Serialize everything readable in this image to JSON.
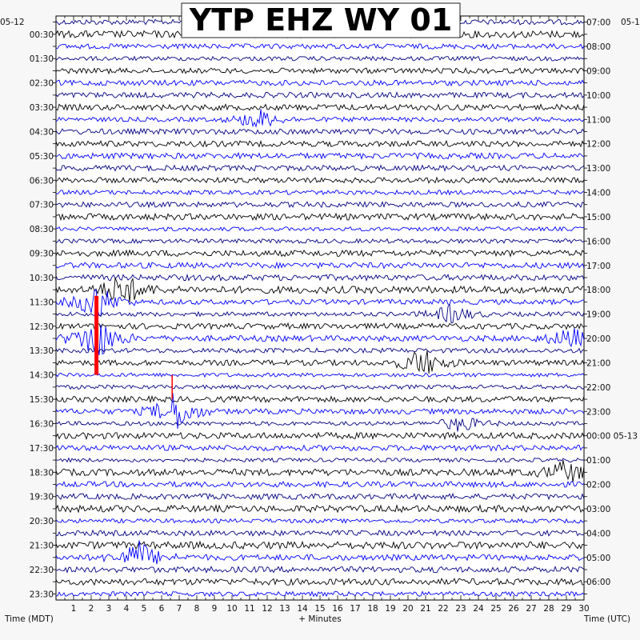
{
  "chart_data": {
    "type": "line",
    "title": "YTP EHZ WY 01",
    "date_left": "05-12",
    "date_right": "05-1",
    "xlabel": "+ Minutes",
    "left_axis_label": "Time (MDT)",
    "right_axis_label": "Time (UTC)",
    "xlim": [
      0,
      30
    ],
    "x_ticks": [
      "1",
      "2",
      "3",
      "4",
      "5",
      "6",
      "7",
      "8",
      "9",
      "10",
      "11",
      "12",
      "13",
      "14",
      "15",
      "16",
      "17",
      "18",
      "19",
      "20",
      "21",
      "22",
      "23",
      "24",
      "25",
      "26",
      "27",
      "28",
      "29",
      "30"
    ],
    "rows": 48,
    "left_times": [
      "00:30",
      "01:30",
      "02:30",
      "03:30",
      "04:30",
      "05:30",
      "06:30",
      "07:30",
      "08:30",
      "09:30",
      "10:30",
      "11:30",
      "12:30",
      "13:30",
      "14:30",
      "15:30",
      "16:30",
      "17:30",
      "18:30",
      "19:30",
      "20:30",
      "21:30",
      "22:30",
      "23:30"
    ],
    "right_times": [
      "07:00",
      "08:00",
      "09:00",
      "10:00",
      "11:00",
      "12:00",
      "13:00",
      "14:00",
      "15:00",
      "16:00",
      "17:00",
      "18:00",
      "19:00",
      "20:00",
      "21:00",
      "22:00",
      "23:00",
      "00:00 05-13",
      "01:00",
      "02:00",
      "03:00",
      "04:00",
      "05:00",
      "06:00"
    ],
    "trace_colors": [
      "#000080",
      "#000000",
      "#0000ff"
    ],
    "clip_color": "#ff0000",
    "events": [
      {
        "row": 22,
        "minute": 3.8,
        "amplitude": 1.6
      },
      {
        "row": 23,
        "minute": 2.3,
        "amplitude": 1.8
      },
      {
        "row": 24,
        "minute": 22.5,
        "amplitude": 0.9
      },
      {
        "row": 26,
        "minute": 2.3,
        "amplitude": 2.2
      },
      {
        "row": 26,
        "minute": 29.2,
        "amplitude": 1.0
      },
      {
        "row": 28,
        "minute": 20.8,
        "amplitude": 1.4
      },
      {
        "row": 32,
        "minute": 6.8,
        "amplitude": 1.9
      },
      {
        "row": 33,
        "minute": 23.0,
        "amplitude": 0.8
      },
      {
        "row": 37,
        "minute": 29.0,
        "amplitude": 1.1
      },
      {
        "row": 44,
        "minute": 4.7,
        "amplitude": 1.5
      },
      {
        "row": 8,
        "minute": 11.5,
        "amplitude": 1.0
      }
    ],
    "clip_markers": [
      {
        "row_start": 23,
        "row_end": 29.5,
        "minute": 2.3
      },
      {
        "row_start": 29.5,
        "row_end": 31.5,
        "minute": 6.6
      }
    ]
  }
}
